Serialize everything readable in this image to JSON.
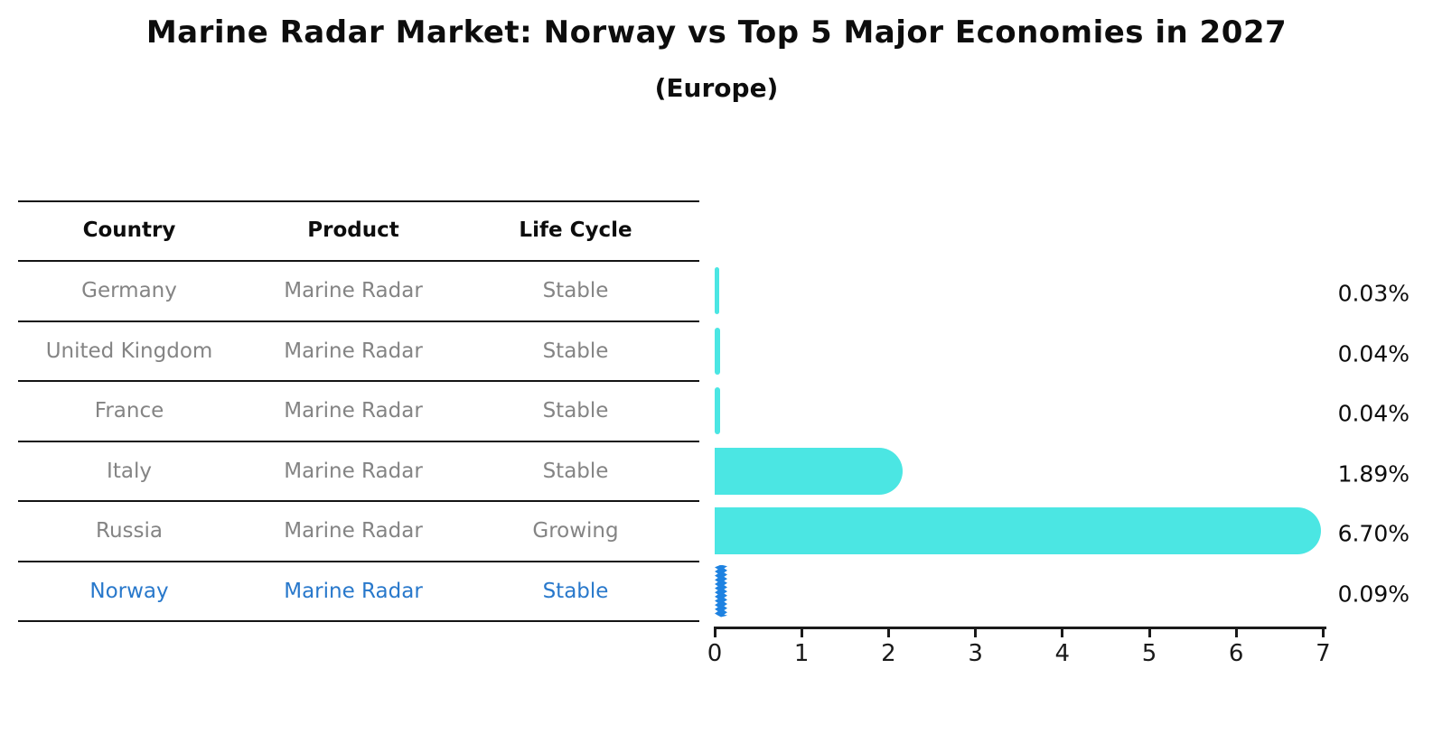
{
  "title": "Marine Radar Market: Norway vs Top 5 Major Economies in 2027",
  "subtitle": "(Europe)",
  "table": {
    "headers": [
      "Country",
      "Product",
      "Life Cycle"
    ],
    "rows": [
      {
        "country": "Germany",
        "product": "Marine Radar",
        "life_cycle": "Stable",
        "highlight": false
      },
      {
        "country": "United Kingdom",
        "product": "Marine Radar",
        "life_cycle": "Stable",
        "highlight": false
      },
      {
        "country": "France",
        "product": "Marine Radar",
        "life_cycle": "Stable",
        "highlight": false
      },
      {
        "country": "Italy",
        "product": "Marine Radar",
        "life_cycle": "Stable",
        "highlight": false
      },
      {
        "country": "Russia",
        "product": "Marine Radar",
        "life_cycle": "Growing",
        "highlight": false
      },
      {
        "country": "Norway",
        "product": "Marine Radar",
        "life_cycle": "Stable",
        "highlight": true
      }
    ]
  },
  "chart_data": {
    "type": "bar",
    "orientation": "horizontal",
    "title": "Marine Radar Market: Norway vs Top 5 Major Economies in 2027 (Europe)",
    "categories": [
      "Germany",
      "United Kingdom",
      "France",
      "Italy",
      "Russia",
      "Norway"
    ],
    "values": [
      0.03,
      0.04,
      0.04,
      1.89,
      6.7,
      0.09
    ],
    "value_labels": [
      "0.03%",
      "0.04%",
      "0.04%",
      "1.89%",
      "6.70%",
      "0.09%"
    ],
    "xlabel": "",
    "ylabel": "",
    "xlim": [
      0,
      7
    ],
    "x_ticks": [
      0,
      1,
      2,
      3,
      4,
      5,
      6,
      7
    ],
    "grid": false,
    "legend": false,
    "highlight_index": 5,
    "bar_color_default": "#4BE6E3",
    "bar_color_highlight": "#1E82E1"
  },
  "colors": {
    "highlight_text": "#2878CB",
    "row_text": "#848484",
    "header_text": "#0D0D0D",
    "axis": "#1A1A1A"
  }
}
